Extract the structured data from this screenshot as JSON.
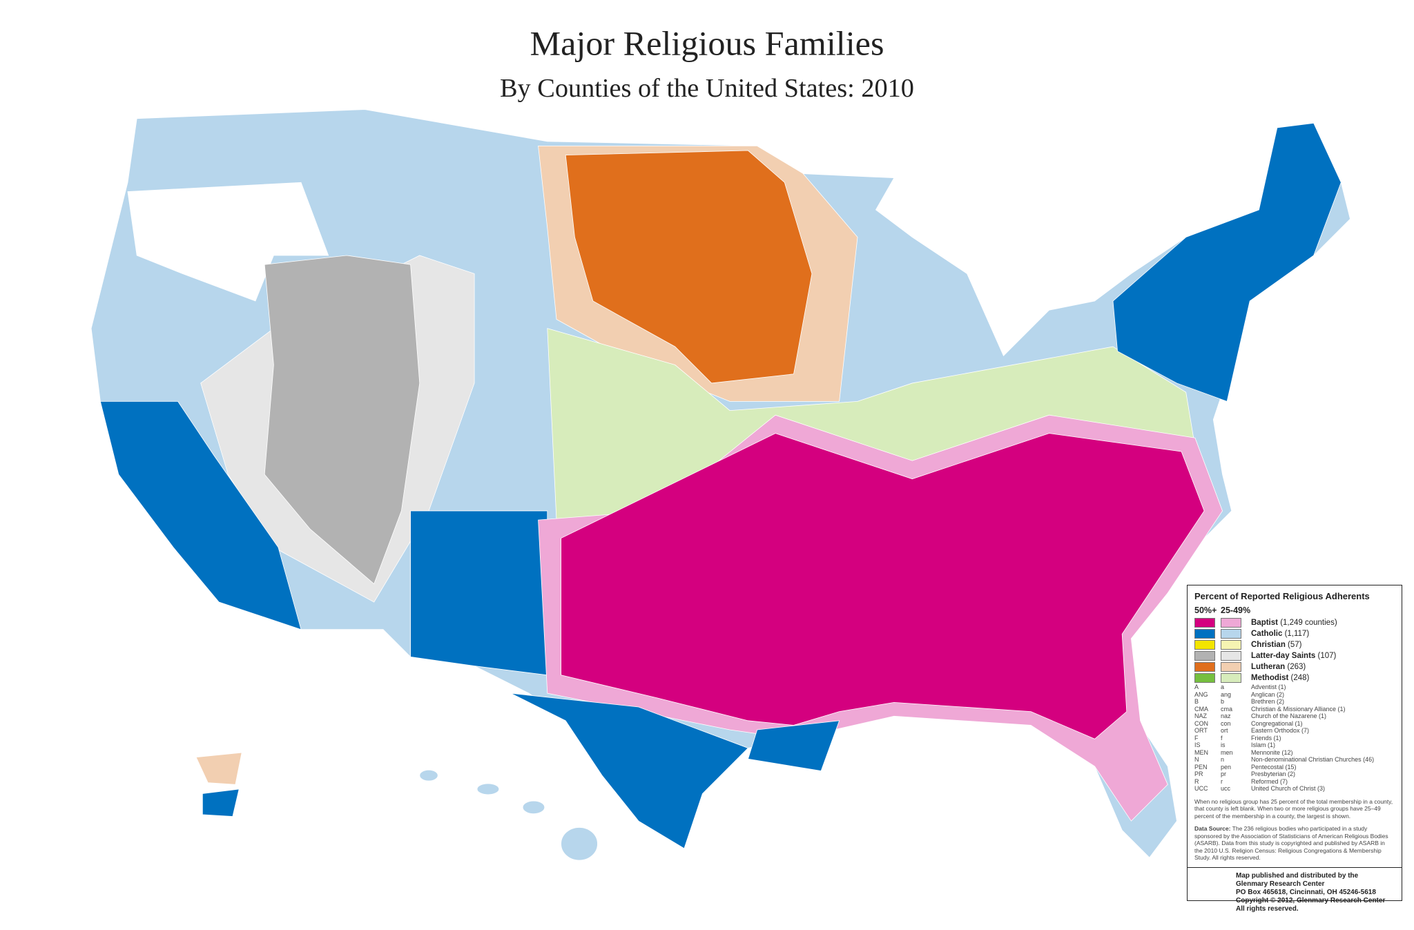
{
  "header": {
    "title": "Major Religious Families",
    "subtitle": "By Counties of the United States: 2010"
  },
  "legend": {
    "title": "Percent of Reported Religious Adherents",
    "columns": [
      "50%+",
      "25-49%"
    ],
    "families": [
      {
        "name": "Baptist",
        "count": "(1,249 counties)",
        "color_strong": "#d4007f",
        "color_light": "#efa8d6"
      },
      {
        "name": "Catholic",
        "count": "(1,117)",
        "color_strong": "#0071c0",
        "color_light": "#b7d6ec"
      },
      {
        "name": "Christian",
        "count": "(57)",
        "color_strong": "#f3e500",
        "color_light": "#f6f4b2"
      },
      {
        "name": "Latter-day Saints",
        "count": "(107)",
        "color_strong": "#b2b2b2",
        "color_light": "#e6e6e6"
      },
      {
        "name": "Lutheran",
        "count": "(263)",
        "color_strong": "#e06f1c",
        "color_light": "#f2cfb1"
      },
      {
        "name": "Methodist",
        "count": "(248)",
        "color_strong": "#76bf3f",
        "color_light": "#d7ecbb"
      }
    ],
    "abbreviations": [
      [
        "A",
        "a",
        "Adventist (1)"
      ],
      [
        "ANG",
        "ang",
        "Anglican (2)"
      ],
      [
        "B",
        "b",
        "Brethren (2)"
      ],
      [
        "CMA",
        "cma",
        "Christian & Missionary Alliance (1)"
      ],
      [
        "NAZ",
        "naz",
        "Church of the Nazarene (1)"
      ],
      [
        "CON",
        "con",
        "Congregational (1)"
      ],
      [
        "ORT",
        "ort",
        "Eastern Orthodox (7)"
      ],
      [
        "F",
        "f",
        "Friends (1)"
      ],
      [
        "IS",
        "is",
        "Islam (1)"
      ],
      [
        "MEN",
        "men",
        "Mennonite (12)"
      ],
      [
        "N",
        "n",
        "Non-denominational Christian Churches (46)"
      ],
      [
        "PEN",
        "pen",
        "Pentecostal (15)"
      ],
      [
        "PR",
        "pr",
        "Presbyterian (2)"
      ],
      [
        "R",
        "r",
        "Reformed (7)"
      ],
      [
        "UCC",
        "ucc",
        "United Church of Christ (3)"
      ]
    ],
    "note": "When no religious group has 25 percent of the total membership in a county, that county is left blank. When two or more religious groups have 25–49 percent of the membership in a county, the largest is shown.",
    "data_source_label": "Data Source:",
    "data_source": "The 236 religious bodies who participated in a study sponsored by the Association of Statisticians of American Religious Bodies (ASARB). Data from this study is copyrighted and published by ASARB in the 2010 U.S. Religion Census: Religious Congregations & Membership Study. All rights reserved.",
    "publisher": [
      "Map published and distributed by the",
      "Glenmary Research Center",
      "PO Box 465618, Cincinnati, OH  45246-5618",
      "Copyright © 2012, Glenmary Research Center",
      "All rights reserved."
    ]
  }
}
